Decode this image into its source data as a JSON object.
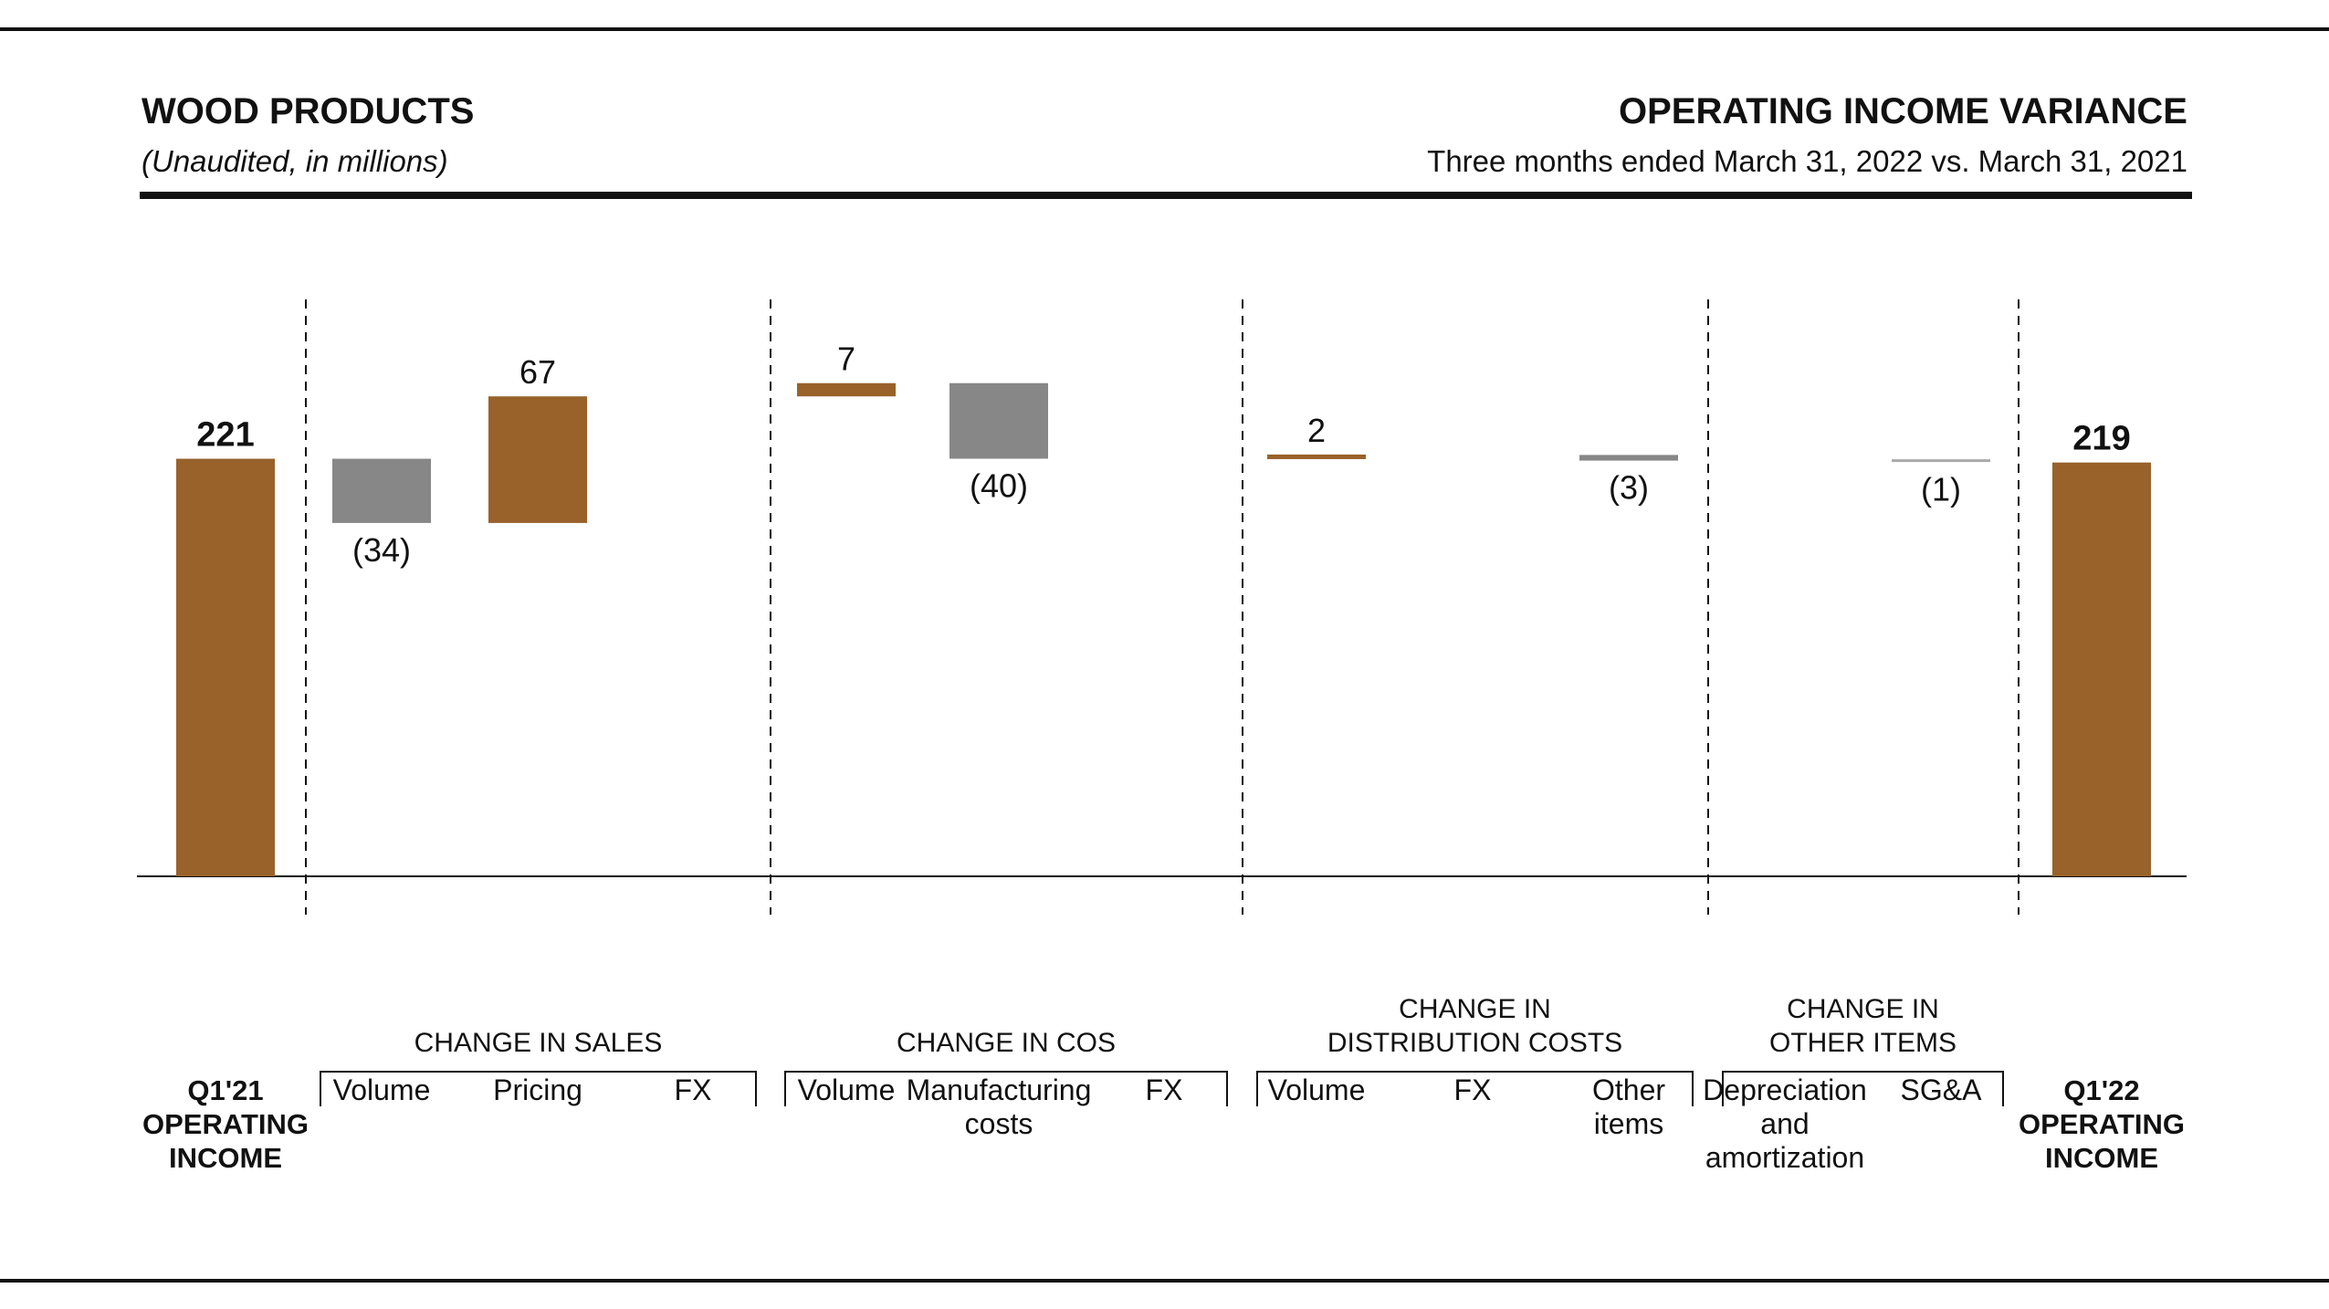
{
  "header": {
    "title_left": "WOOD PRODUCTS",
    "subtitle_left": "(Unaudited, in millions)",
    "title_right": "OPERATING INCOME VARIANCE",
    "subtitle_right": "Three months ended March 31, 2022 vs. March 31, 2021"
  },
  "colors": {
    "positive": "#98622A",
    "negative": "#878787",
    "total": "#98622A",
    "text": "#111111"
  },
  "chart_data": {
    "type": "bar",
    "subtype": "waterfall",
    "categories": [
      "Q1'21 OPERATING INCOME",
      "Volume",
      "Pricing",
      "FX",
      "Volume",
      "Manufacturing costs",
      "FX",
      "Volume",
      "FX",
      "Other items",
      "Depreciation and amortization",
      "SG&A",
      "Q1'22 OPERATING INCOME"
    ],
    "category_lines": [
      [
        "Q1'21",
        "OPERATING",
        "INCOME"
      ],
      [
        "Volume"
      ],
      [
        "Pricing"
      ],
      [
        "FX"
      ],
      [
        "Volume"
      ],
      [
        "Manufacturing",
        "costs"
      ],
      [
        "FX"
      ],
      [
        "Volume"
      ],
      [
        "FX"
      ],
      [
        "Other",
        "items"
      ],
      [
        "Depreciation",
        "and",
        "amortization"
      ],
      [
        "SG&A"
      ],
      [
        "Q1'22",
        "OPERATING",
        "INCOME"
      ]
    ],
    "values": [
      221,
      -34,
      67,
      0,
      7,
      -40,
      0,
      2,
      0,
      -3,
      0,
      -1,
      219
    ],
    "kinds": [
      "total",
      "delta",
      "delta",
      "delta",
      "delta",
      "delta",
      "delta",
      "delta",
      "delta",
      "delta",
      "delta",
      "delta",
      "total"
    ],
    "data_labels": [
      "221",
      "(34)",
      "67",
      "",
      "7",
      "(40)",
      "",
      "2",
      "",
      "(3)",
      "",
      "(1)",
      "219"
    ],
    "groups": [
      {
        "label_lines": [
          "CHANGE IN SALES"
        ],
        "items": [
          1,
          3
        ]
      },
      {
        "label_lines": [
          "CHANGE IN COS"
        ],
        "items": [
          4,
          6
        ]
      },
      {
        "label_lines": [
          "CHANGE IN",
          "DISTRIBUTION COSTS"
        ],
        "items": [
          7,
          9
        ]
      },
      {
        "label_lines": [
          "CHANGE IN",
          "OTHER ITEMS"
        ],
        "items": [
          10,
          11
        ]
      }
    ],
    "ylim": [
      0,
      270
    ],
    "title": "",
    "xlabel": "",
    "ylabel": "",
    "grid": false,
    "legend": "none"
  }
}
